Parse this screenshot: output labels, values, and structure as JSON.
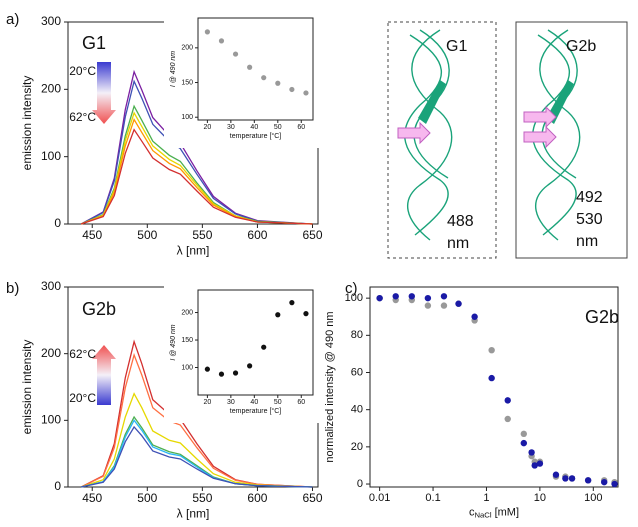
{
  "chart_data": [
    {
      "type": "line",
      "panel": "a)",
      "label": "G1",
      "arrow_top": "20°C",
      "arrow_bottom": "62°C",
      "x_label": "λ [nm]",
      "y_label": "emission intensity",
      "x": [
        440,
        460,
        470,
        480,
        488,
        495,
        505,
        520,
        530,
        545,
        560,
        580,
        600,
        650
      ],
      "series": [
        {
          "color": "#7b1fa2",
          "values": [
            0,
            18,
            68,
            170,
            226,
            199,
            158,
            131,
            120,
            79,
            41,
            16,
            5,
            0
          ]
        },
        {
          "color": "#3f51b5",
          "values": [
            0,
            17,
            64,
            159,
            212,
            187,
            148,
            123,
            112,
            74,
            38,
            15,
            4,
            0
          ]
        },
        {
          "color": "#4caf50",
          "values": [
            0,
            14,
            53,
            131,
            175,
            154,
            123,
            102,
            93,
            61,
            32,
            12,
            4,
            0
          ]
        },
        {
          "color": "#e6d800",
          "values": [
            0,
            13,
            50,
            124,
            165,
            145,
            116,
            96,
            87,
            58,
            30,
            12,
            3,
            0
          ]
        },
        {
          "color": "#ff9800",
          "values": [
            0,
            12,
            47,
            116,
            155,
            136,
            109,
            90,
            82,
            54,
            28,
            11,
            3,
            0
          ]
        },
        {
          "color": "#d32f2f",
          "values": [
            0,
            11,
            42,
            105,
            140,
            123,
            98,
            81,
            74,
            49,
            25,
            10,
            3,
            0
          ]
        }
      ],
      "xlim": [
        428,
        655
      ],
      "xticks": [
        450,
        500,
        550,
        600,
        650
      ],
      "ylim": [
        0,
        300
      ],
      "yticks": [
        0,
        100,
        200,
        300
      ]
    },
    {
      "type": "scatter",
      "x_label": "temperature [°C]",
      "y_label": "I @ 490 nm",
      "x": [
        20,
        26,
        32,
        38,
        44,
        50,
        56,
        62
      ],
      "series": [
        {
          "color": "#999999",
          "values": [
            223,
            210,
            191,
            172,
            157,
            149,
            140,
            135
          ]
        }
      ],
      "xlim": [
        16,
        65
      ],
      "xticks": [
        20,
        30,
        40,
        50,
        60
      ],
      "ylim": [
        96,
        243
      ],
      "yticks": [
        100,
        150,
        200
      ]
    },
    {
      "type": "line",
      "panel": "b)",
      "label": "G2b",
      "arrow_top": "62°C",
      "arrow_bottom": "20°C",
      "x_label": "λ [nm]",
      "y_label": "emission intensity",
      "x": [
        440,
        460,
        470,
        480,
        488,
        495,
        505,
        520,
        530,
        545,
        560,
        580,
        600,
        650
      ],
      "series": [
        {
          "color": "#d32f2f",
          "values": [
            0,
            17,
            65,
            164,
            218,
            185,
            131,
            109,
            102,
            65,
            31,
            11,
            4,
            0
          ]
        },
        {
          "color": "#ff7043",
          "values": [
            0,
            16,
            59,
            149,
            198,
            168,
            119,
            99,
            93,
            59,
            28,
            10,
            4,
            0
          ]
        },
        {
          "color": "#e6d800",
          "values": [
            0,
            11,
            42,
            105,
            140,
            119,
            84,
            70,
            66,
            42,
            20,
            7,
            3,
            0
          ]
        },
        {
          "color": "#4caf50",
          "values": [
            0,
            8,
            32,
            79,
            105,
            89,
            63,
            53,
            49,
            32,
            15,
            5,
            2,
            0
          ]
        },
        {
          "color": "#29b6f6",
          "values": [
            0,
            8,
            30,
            75,
            100,
            85,
            60,
            50,
            47,
            30,
            14,
            5,
            2,
            0
          ]
        },
        {
          "color": "#3f51b5",
          "values": [
            0,
            7,
            27,
            68,
            90,
            77,
            54,
            45,
            42,
            27,
            13,
            5,
            2,
            0
          ]
        }
      ],
      "xlim": [
        428,
        655
      ],
      "xticks": [
        450,
        500,
        550,
        600,
        650
      ],
      "ylim": [
        0,
        300
      ],
      "yticks": [
        0,
        100,
        200,
        300
      ]
    },
    {
      "type": "scatter",
      "x_label": "temperature [°C]",
      "y_label": "I @ 490 nm",
      "x": [
        20,
        26,
        32,
        38,
        44,
        50,
        56,
        62
      ],
      "series": [
        {
          "color": "#111111",
          "values": [
            97,
            88,
            90,
            103,
            137,
            196,
            218,
            198
          ]
        }
      ],
      "xlim": [
        16,
        65
      ],
      "xticks": [
        20,
        30,
        40,
        50,
        60
      ],
      "ylim": [
        50,
        241
      ],
      "yticks": [
        100,
        150,
        200
      ]
    },
    {
      "type": "scatter",
      "panel": "c)",
      "label": "G2b",
      "log_x": true,
      "x_label": "c",
      "x_label_sub": "NaCl",
      "x_label_unit": "[mM]",
      "y_label": "normalized intensity @ 490 nm",
      "x": [
        0.01,
        0.02,
        0.04,
        0.08,
        0.16,
        0.3,
        0.6,
        1.25,
        2.5,
        5,
        7,
        8,
        10,
        20,
        30,
        40,
        80,
        160,
        250
      ],
      "series": [
        {
          "color": "#999999",
          "values": [
            100,
            99,
            99,
            96,
            96,
            97,
            88,
            72,
            35,
            27,
            15,
            12,
            12,
            4,
            4,
            3,
            2,
            2,
            1
          ]
        },
        {
          "color": "#1a1aa6",
          "values": [
            100,
            101,
            101,
            100,
            101,
            97,
            90,
            57,
            45,
            22,
            17,
            10,
            11,
            5,
            3,
            3,
            2,
            1,
            0
          ]
        }
      ],
      "xlim": [
        0.0066,
        290
      ],
      "xticks": [
        0.01,
        0.1,
        1,
        10,
        100
      ],
      "ylim": [
        -1.6,
        106
      ],
      "yticks": [
        0,
        20,
        40,
        60,
        80,
        100
      ]
    }
  ],
  "diagram": {
    "boxes": [
      {
        "label": "G1",
        "wavelength": [
          "488",
          "nm"
        ]
      },
      {
        "label": "G2b",
        "wavelength": [
          "492",
          "530",
          "nm"
        ]
      }
    ]
  }
}
